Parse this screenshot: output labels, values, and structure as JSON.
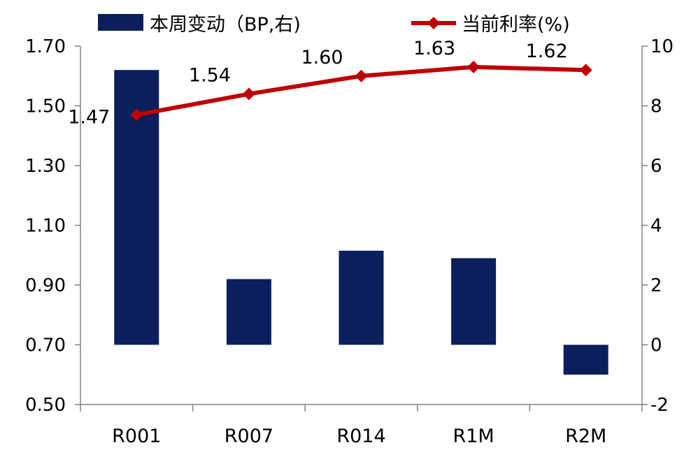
{
  "chart_data": {
    "type": "bar+line",
    "categories": [
      "R001",
      "R007",
      "R014",
      "R1M",
      "R2M"
    ],
    "series": [
      {
        "name": "本周变动（BP,右)",
        "type": "bar",
        "axis": "right",
        "color": "#0a1f5c",
        "values": [
          9.2,
          2.2,
          3.15,
          2.9,
          -1.0
        ]
      },
      {
        "name": "当前利率(%)",
        "type": "line",
        "axis": "left",
        "color": "#c00000",
        "values": [
          1.47,
          1.54,
          1.6,
          1.63,
          1.62
        ],
        "labels": [
          "1.47",
          "1.54",
          "1.60",
          "1.63",
          "1.62"
        ]
      }
    ],
    "left_axis": {
      "ylim": [
        0.5,
        1.7
      ],
      "ticks": [
        "0.50",
        "0.70",
        "0.90",
        "1.10",
        "1.30",
        "1.50",
        "1.70"
      ]
    },
    "right_axis": {
      "ylim": [
        -2,
        10
      ],
      "ticks": [
        "-2",
        "0",
        "2",
        "4",
        "6",
        "8",
        "10"
      ]
    },
    "legend_position": "top"
  }
}
